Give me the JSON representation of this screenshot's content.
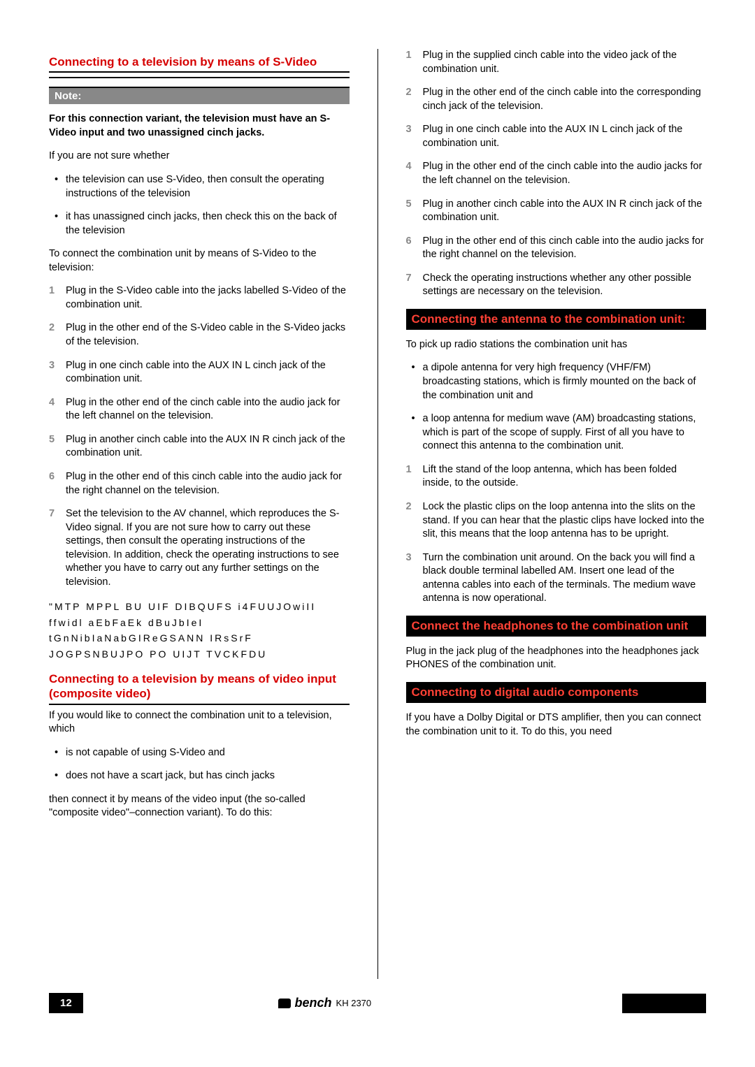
{
  "left": {
    "title1": "Connecting to a television by means of S-Video",
    "note_label": "Note:",
    "note_bold": "For this connection variant, the television must have an S-Video input and two unassigned cinch jacks.",
    "p1": "If you are not sure whether",
    "b1": "the television can use S-Video, then consult the operating instructions of the television",
    "b2": "it has unassigned cinch jacks, then check this on the back of the television",
    "p2": "To connect the combination unit by means of S-Video to the television:",
    "s1": "Plug in the S-Video cable into the jacks labelled S-Video of the combination unit.",
    "s2": "Plug in the other end of the S-Video cable in the S-Video jacks of the television.",
    "s3": "Plug in one cinch cable into the AUX IN L cinch jack of the combination unit.",
    "s4": "Plug in the other end of the cinch cable into the audio jack for the left channel on the television.",
    "s5": "Plug in another cinch cable into the AUX IN R cinch jack of the combination unit.",
    "s6": "Plug in the other end of this cinch cable into the audio jack for the right channel on the television.",
    "s7": "Set the television to the AV channel, which reproduces the S-Video signal. If you are not sure how to carry out these settings, then consult the operating instructions of the television. In addition, check the operating instructions to see whether you have to carry out any further settings on the television.",
    "spaced": "\"MTP MPPL BU UIF DIBQUFS i4FUUJOwiII ffwidl aEbFaEk dBuJbIeI tGnNibIaNabGIReGSANN IRsSrF JOGPSNBUJPO PO UIJT TVCKFDU",
    "title2": "Connecting to a television by means of video input (composite video)",
    "p3": "If you would like to connect the combination unit to a television, which",
    "b3": "is not capable of using S-Video and",
    "b4": "does not have a scart jack, but has cinch jacks",
    "p4": " then connect it by means of the video input (the so-called \"composite video\"–connection variant). To do this:"
  },
  "right": {
    "r1": "Plug in the supplied cinch cable into the video jack of the combination unit.",
    "r2": "Plug in the other end of the cinch cable into the corresponding cinch jack of the television.",
    "r3": "Plug in one cinch cable into the AUX IN L cinch jack of the combination unit.",
    "r4": "Plug in the other end of the cinch cable into the audio jacks for the left channel on the television.",
    "r5": "Plug in another cinch cable into the AUX IN R cinch jack of the combination unit.",
    "r6": "Plug in the other end of this cinch cable into the audio jacks for the right channel on the television.",
    "r7": "Check the operating instructions whether any other possible settings are necessary on the television.",
    "h1": "Connecting the antenna to the combination unit:",
    "p5": "To pick up radio stations the combination unit has",
    "b5": "a dipole antenna for very high frequency (VHF/FM) broadcasting stations, which is firmly mounted on the back of the combination unit and",
    "b6": "a loop antenna for medium wave (AM) broadcasting stations, which is part of the scope of supply. First of all you have to connect this antenna to the combination unit.",
    "a1": "Lift the stand of the loop antenna, which has been folded inside, to the outside.",
    "a2": "Lock the plastic clips on the loop antenna into the slits on the stand. If you can hear that the plastic clips have locked into the slit, this means that the loop antenna has to be upright.",
    "a3": "Turn the combination unit around. On the back you will find a black double terminal labelled AM. Insert one lead of the antenna cables into each of the terminals. The medium wave antenna is now operational.",
    "h2": "Connect the headphones to the combination unit",
    "p6": "Plug in the jack plug of the headphones into the headphones jack PHONES of the combination unit.",
    "h3": "Connecting to digital audio components",
    "p7": "If you have a Dolby Digital or DTS amplifier, then you can connect the combination unit to it. To do this, you need"
  },
  "footer": {
    "page": "12",
    "brand": "bench",
    "model": "KH 2370"
  },
  "colors": {
    "heading_red": "#d60000",
    "header_bg": "#000000",
    "note_bg": "#888888",
    "step_num": "#888888"
  }
}
